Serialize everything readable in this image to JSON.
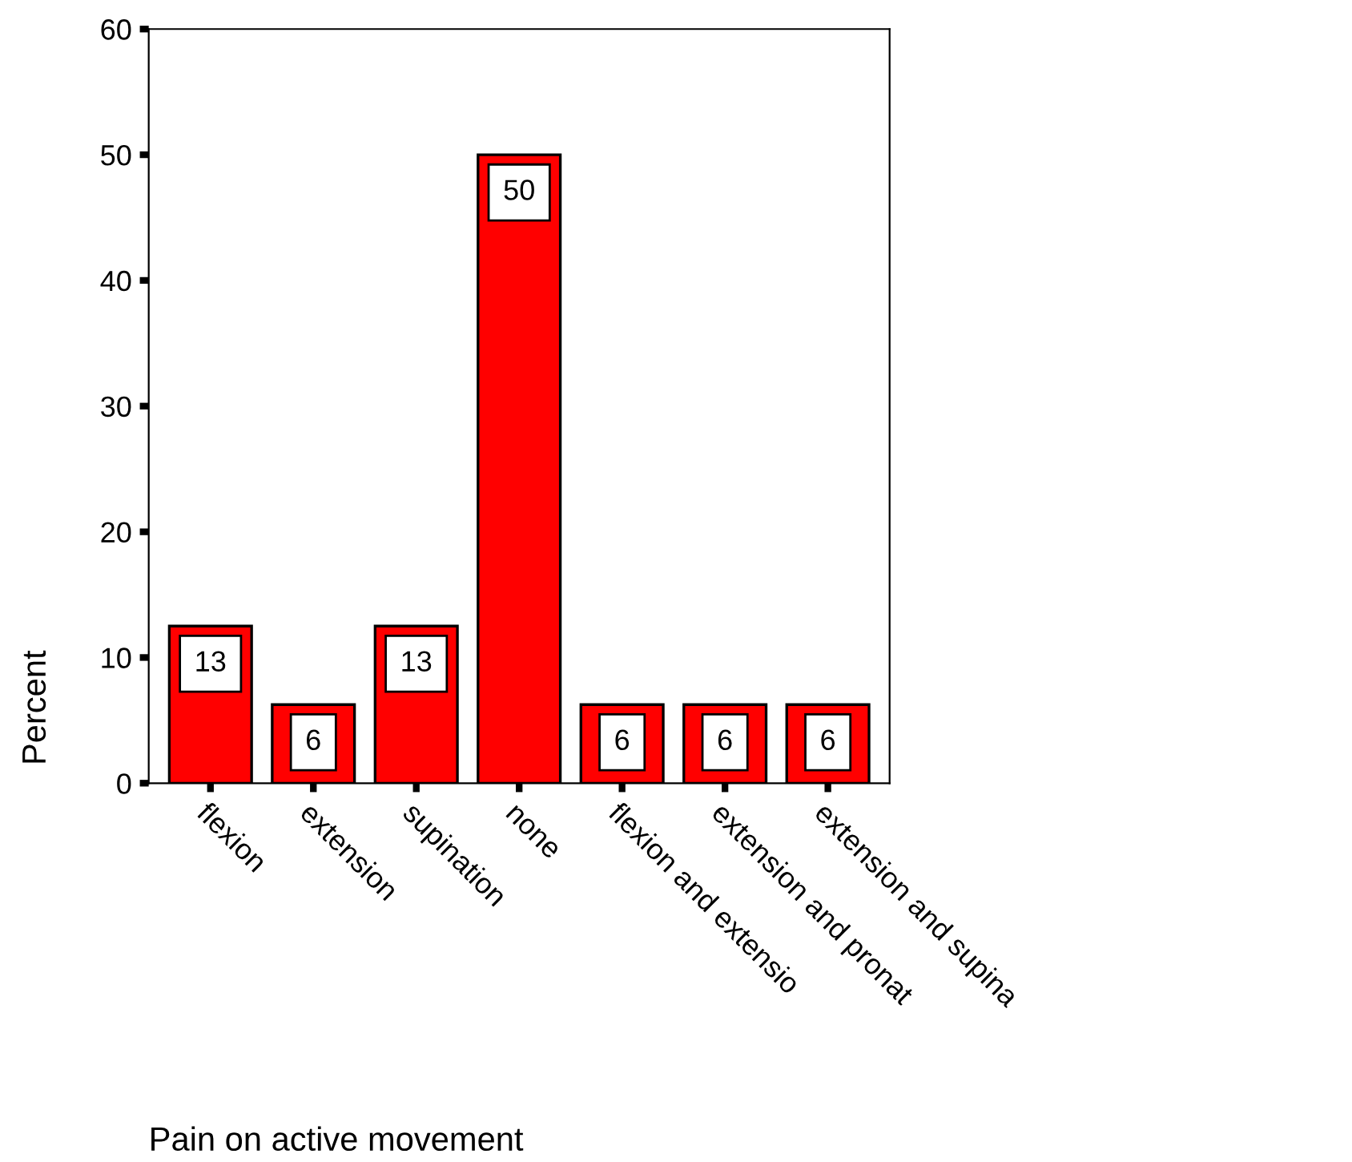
{
  "chart_data": {
    "type": "bar",
    "xlabel": "Pain on active movement",
    "ylabel": "Percent",
    "categories": [
      "flexion",
      "extension",
      "supination",
      "none",
      "flexion and extensio",
      "extension and pronat",
      "extension and supina"
    ],
    "values": [
      12.5,
      6.25,
      12.5,
      50,
      6.25,
      6.25,
      6.25
    ],
    "value_labels": [
      "13",
      "6",
      "13",
      "50",
      "6",
      "6",
      "6"
    ],
    "color": "#ff0000",
    "ylim": [
      0,
      60
    ],
    "yticks": [
      0,
      10,
      20,
      30,
      40,
      50,
      60
    ],
    "grid": false,
    "legend": false
  }
}
